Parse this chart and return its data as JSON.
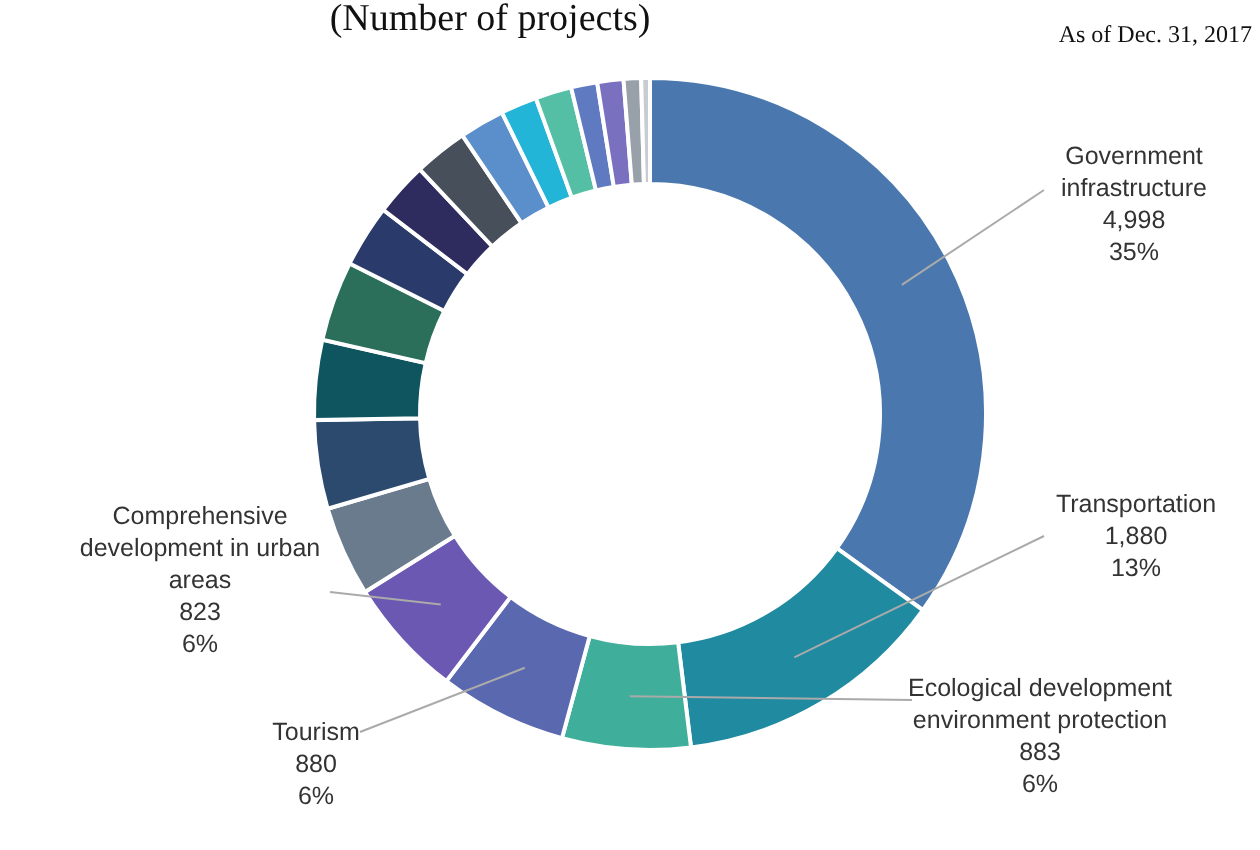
{
  "chart_data": {
    "type": "donut",
    "title": "(Number of projects)",
    "annotations": [
      "As of Dec. 31, 2017"
    ],
    "categories": [
      "Government infrastructure",
      "Transportation",
      "Ecological development environment protection",
      "Tourism",
      "Comprehensive development in urban areas",
      null,
      null,
      null,
      null,
      null,
      null,
      null,
      null,
      null,
      null,
      null,
      null,
      null,
      null
    ],
    "values": [
      4998,
      1880,
      883,
      880,
      823,
      620,
      610,
      550,
      550,
      430,
      370,
      370,
      310,
      250,
      250,
      180,
      180,
      120,
      60
    ],
    "value_labels": [
      "4,998\n35%",
      "1,880\n13%",
      "883\n6%",
      "880\n6%",
      "823\n6%",
      null,
      null,
      null,
      null,
      null,
      null,
      null,
      null,
      null,
      null,
      null,
      null,
      null,
      null
    ],
    "colors": [
      "#4a78ae",
      "#1f8aa0",
      "#3fae9a",
      "#5a68b0",
      "#6b58b2",
      "#6b7b8e",
      "#2b4a6e",
      "#0f5560",
      "#2b6e5a",
      "#2a3a6a",
      "#2e2c5e",
      "#474f5a",
      "#5b8fcc",
      "#22b5d8",
      "#55bfa5",
      "#5f7ac0",
      "#7a70c0",
      "#98a0aa",
      "#c8ccd0"
    ]
  }
}
